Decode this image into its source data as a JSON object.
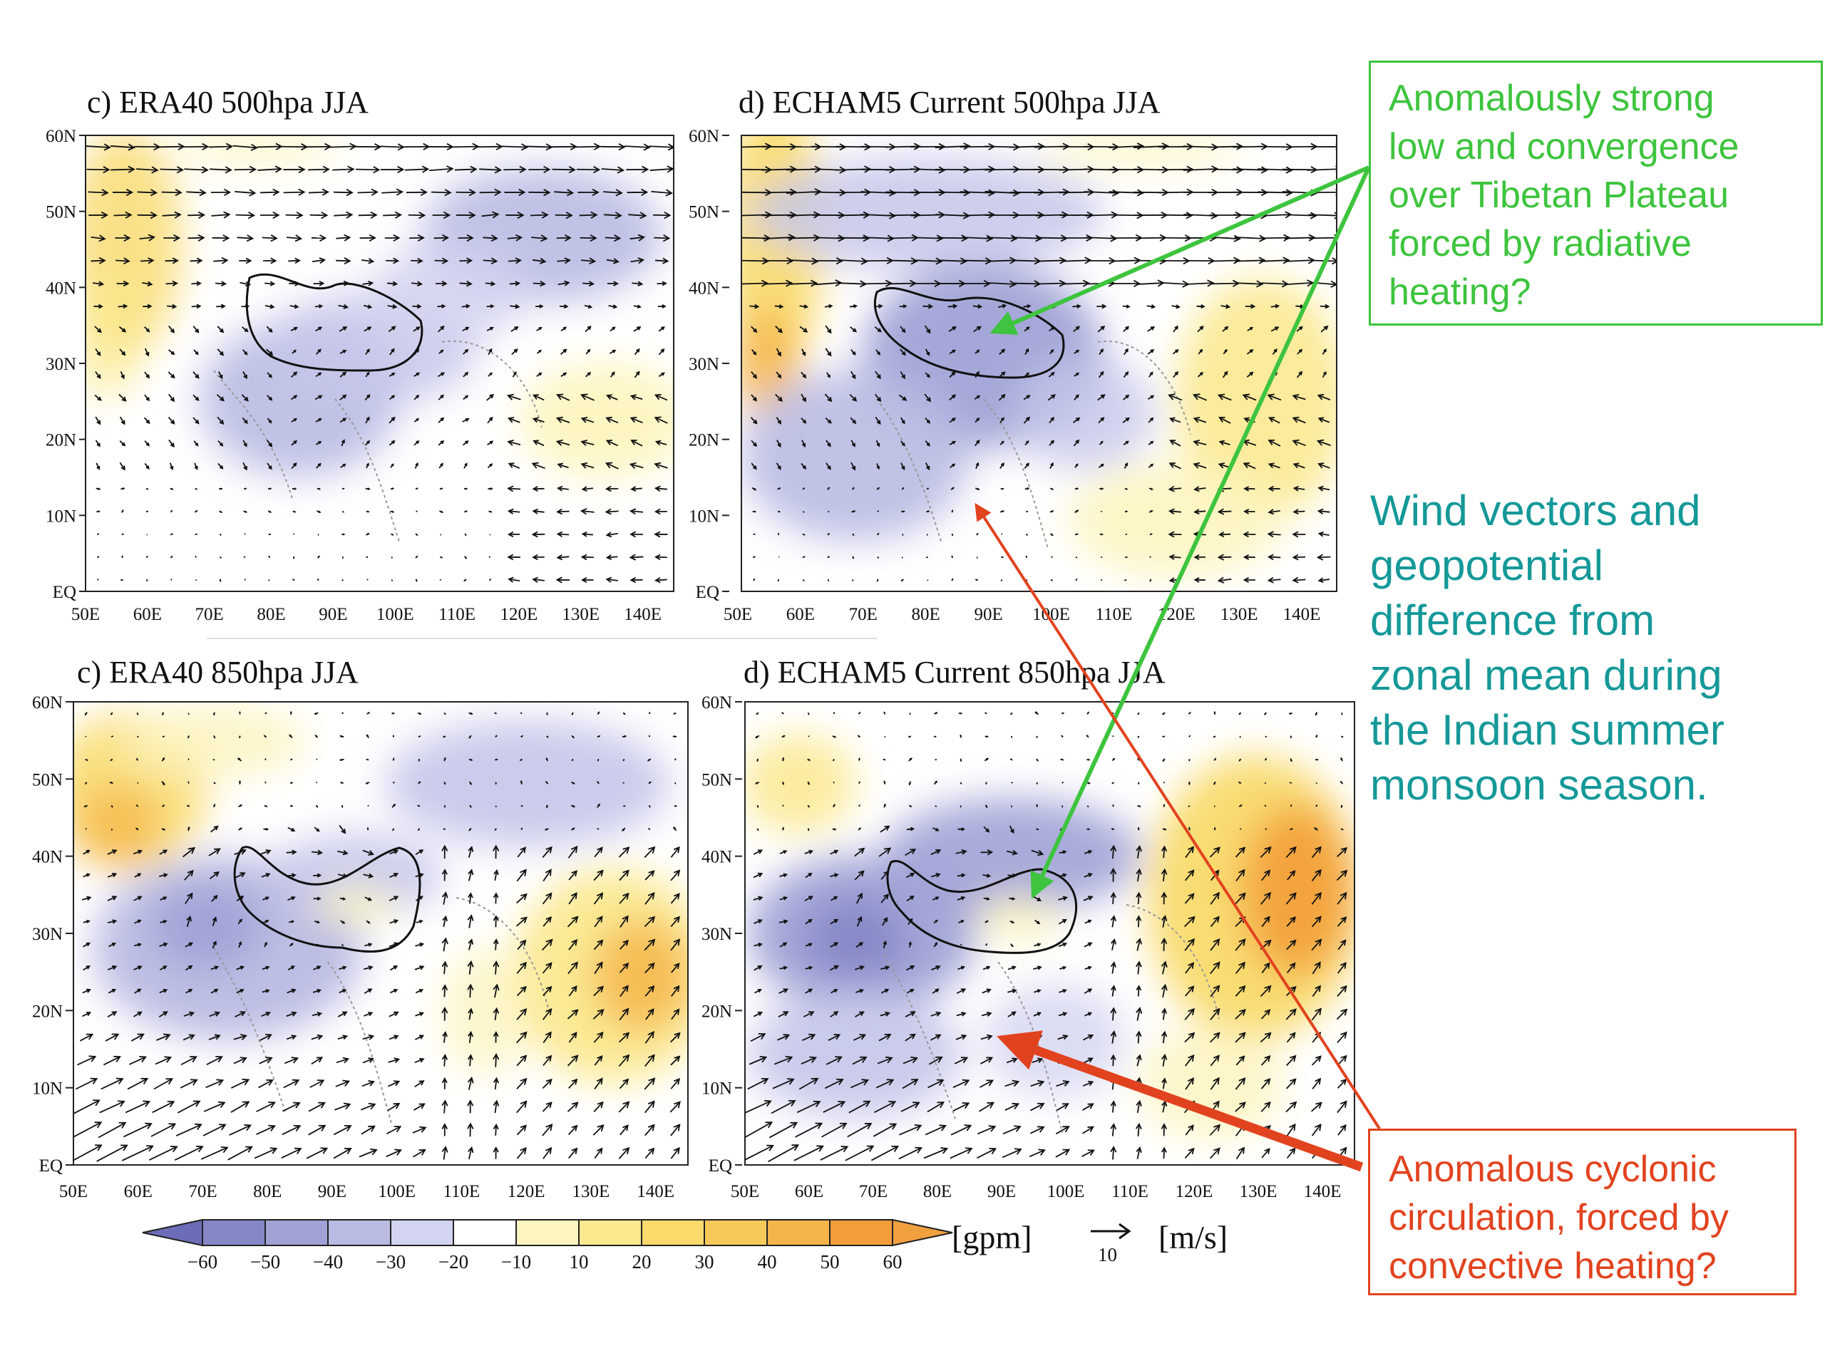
{
  "panels": [
    {
      "id": "a",
      "title": "c) ERA40 500hpa JJA",
      "lat_labels": [
        "60N",
        "50N",
        "40N",
        "30N",
        "20N",
        "10N",
        "EQ"
      ],
      "lon_labels": [
        "50E",
        "60E",
        "70E",
        "80E",
        "90E",
        "100E",
        "110E",
        "120E",
        "130E",
        "140E"
      ]
    },
    {
      "id": "b",
      "title": "d) ECHAM5 Current 500hpa JJA",
      "lat_labels": [
        "60N",
        "50N",
        "40N",
        "30N",
        "20N",
        "10N",
        "EQ"
      ],
      "lon_labels": [
        "50E",
        "60E",
        "70E",
        "80E",
        "90E",
        "100E",
        "110E",
        "120E",
        "130E",
        "140E"
      ]
    },
    {
      "id": "c",
      "title": "c) ERA40 850hpa JJA",
      "lat_labels": [
        "60N",
        "50N",
        "40N",
        "30N",
        "20N",
        "10N",
        "EQ"
      ],
      "lon_labels": [
        "50E",
        "60E",
        "70E",
        "80E",
        "90E",
        "100E",
        "110E",
        "120E",
        "130E",
        "140E"
      ]
    },
    {
      "id": "d",
      "title": "d) ECHAM5 Current 850hpa JJA",
      "lat_labels": [
        "60N",
        "50N",
        "40N",
        "30N",
        "20N",
        "10N",
        "EQ"
      ],
      "lon_labels": [
        "50E",
        "60E",
        "70E",
        "80E",
        "90E",
        "100E",
        "110E",
        "120E",
        "130E",
        "140E"
      ]
    }
  ],
  "colorbar": {
    "labels": [
      "−60",
      "−50",
      "−40",
      "−30",
      "−20",
      "−10",
      "10",
      "20",
      "30",
      "40",
      "50",
      "60"
    ],
    "colors": [
      "#6b6db8",
      "#8587c7",
      "#a0a2d6",
      "#b9bbe3",
      "#d3d4f0",
      "#ffffff",
      "#fdf5c0",
      "#fbe98f",
      "#f9da6a",
      "#f7c95a",
      "#f5b54a",
      "#f39d3a",
      "#f1a040"
    ],
    "unit": "[gpm]"
  },
  "vector_key": {
    "value": "10",
    "unit": "[m/s]"
  },
  "annotations": {
    "green_box_lines": [
      "Anomalously strong",
      "low and convergence",
      "over Tibetan Plateau",
      "forced by radiative",
      "heating?"
    ],
    "red_box_lines": [
      "Anomalous cyclonic",
      "circulation, forced by",
      "convective heating?"
    ],
    "description_lines": [
      "Wind vectors and",
      "geopotential",
      "difference from",
      "zonal mean during",
      "the Indian summer",
      "monsoon season."
    ],
    "green_color": "#3ec43e",
    "red_color": "#e2431f",
    "teal_color": "#159898"
  }
}
